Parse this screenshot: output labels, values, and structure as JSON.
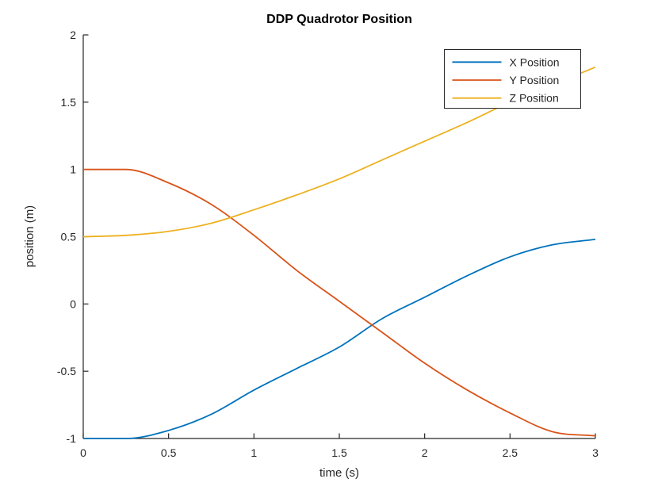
{
  "colors": {
    "background": "#ffffff",
    "axis": "#262626",
    "title_text": "#000000",
    "legend_border": "#262626",
    "series_x": "#0072BD",
    "series_y": "#D95319",
    "series_z": "#EDB120"
  },
  "chart_data": {
    "type": "line",
    "title": "DDP Quadrotor Position",
    "xlabel": "time (s)",
    "ylabel": "position (m)",
    "xlim": [
      0,
      3
    ],
    "ylim": [
      -1,
      2
    ],
    "xticks": [
      0,
      0.5,
      1,
      1.5,
      2,
      2.5,
      3
    ],
    "xtick_labels": [
      "0",
      "0.5",
      "1",
      "1.5",
      "2",
      "2.5",
      "3"
    ],
    "yticks": [
      -1,
      -0.5,
      0,
      0.5,
      1,
      1.5,
      2
    ],
    "ytick_labels": [
      "-1",
      "-0.5",
      "0",
      "0.5",
      "1",
      "1.5",
      "2"
    ],
    "grid": false,
    "box": false,
    "legend_position": "top-right",
    "x": [
      0,
      0.25,
      0.5,
      0.75,
      1,
      1.25,
      1.5,
      1.75,
      2,
      2.25,
      2.5,
      2.75,
      3
    ],
    "series": [
      {
        "name": "X Position",
        "color": "#0072BD",
        "values": [
          -1.0,
          -1.0,
          -0.94,
          -0.82,
          -0.64,
          -0.48,
          -0.32,
          -0.11,
          0.05,
          0.21,
          0.35,
          0.44,
          0.48
        ]
      },
      {
        "name": "Y Position",
        "color": "#D95319",
        "values": [
          1.0,
          1.0,
          0.9,
          0.74,
          0.51,
          0.25,
          0.02,
          -0.21,
          -0.44,
          -0.64,
          -0.81,
          -0.95,
          -0.98
        ]
      },
      {
        "name": "Z Position",
        "color": "#EDB120",
        "values": [
          0.5,
          0.51,
          0.54,
          0.6,
          0.7,
          0.81,
          0.93,
          1.07,
          1.21,
          1.35,
          1.5,
          1.63,
          1.76
        ]
      }
    ]
  }
}
